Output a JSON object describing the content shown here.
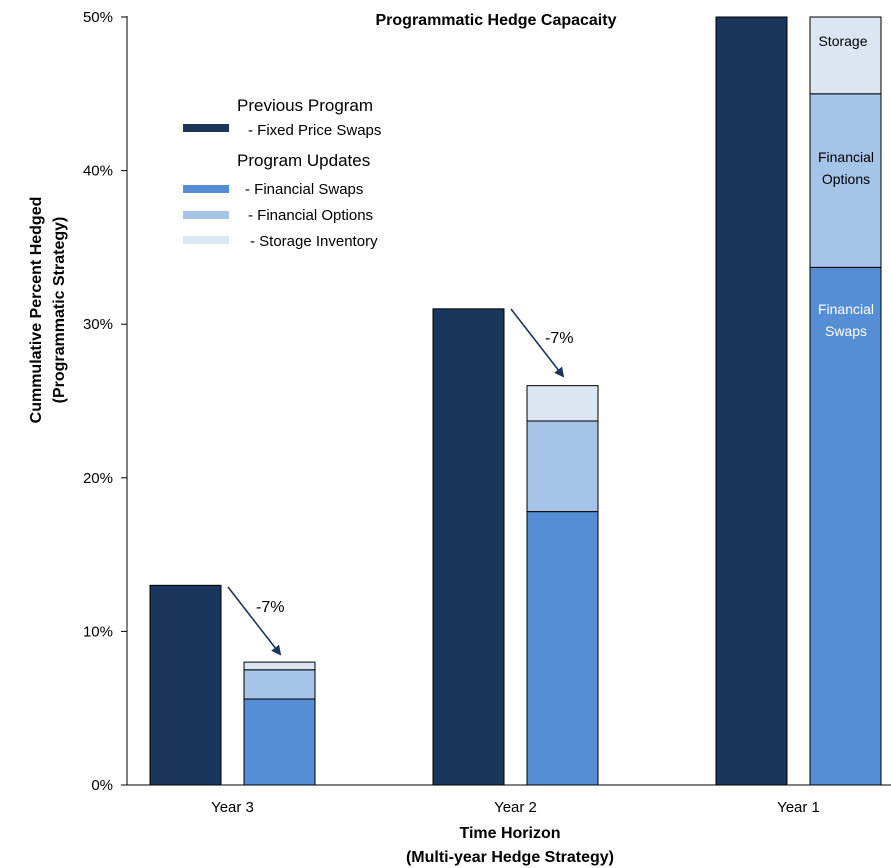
{
  "chart_data": {
    "type": "bar",
    "title": "Programmatic Hedge Capacaity",
    "xlabel": [
      "Time Horizon",
      "(Multi-year Hedge Strategy)"
    ],
    "ylabel": [
      "Cummulative Percent Hedged",
      "(Programmatic Strategy)"
    ],
    "ylim": [
      0,
      50
    ],
    "yticks": [
      0,
      10,
      20,
      30,
      40,
      50
    ],
    "ytick_labels": [
      "0%",
      "10%",
      "20%",
      "30%",
      "40%",
      "50%"
    ],
    "categories": [
      "Year 3",
      "Year 2",
      "Year 1"
    ],
    "grid": false,
    "legend_position": "top-left",
    "series": [
      {
        "name": "Fixed Price Swaps",
        "group": "Previous Program",
        "stack": "previous",
        "color": "#1b365d",
        "values": [
          13,
          31,
          50
        ]
      },
      {
        "name": "Financial Swaps",
        "group": "Program Updates",
        "stack": "updates",
        "color": "#558ed5",
        "values": [
          5.6,
          17.8,
          33.7
        ]
      },
      {
        "name": "Financial Options",
        "group": "Program Updates",
        "stack": "updates",
        "color": "#a6c3e8",
        "values": [
          1.9,
          5.9,
          11.3
        ]
      },
      {
        "name": "Storage Inventory",
        "group": "Program Updates",
        "stack": "updates",
        "color": "#dce6f2",
        "values": [
          0.5,
          2.3,
          5.0
        ]
      }
    ],
    "legend": {
      "group1": "Previous Program",
      "group1_items": [
        "- Fixed Price Swaps"
      ],
      "group2": "Program Updates",
      "group2_items": [
        "- Financial Swaps",
        "- Financial Options",
        "- Storage Inventory"
      ]
    },
    "annotations": [
      {
        "text": "-7%",
        "category": "Year 3"
      },
      {
        "text": "-7%",
        "category": "Year 2"
      }
    ],
    "segment_labels": {
      "storage": "Storage",
      "options": [
        "Financial",
        "Options"
      ],
      "swaps": [
        "Financial",
        "Swaps"
      ]
    }
  }
}
